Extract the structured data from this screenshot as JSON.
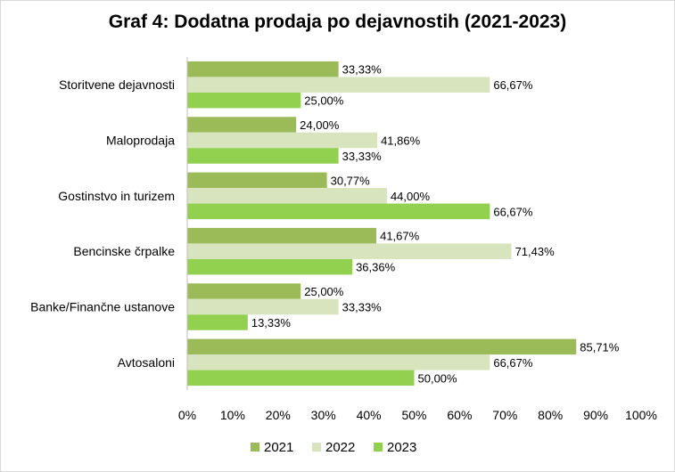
{
  "chart_data": {
    "type": "bar",
    "orientation": "horizontal",
    "title": "Graf 4: Dodatna prodaja po dejavnostih (2021-2023)",
    "categories": [
      "Storitvene dejavnosti",
      "Maloprodaja",
      "Gostinstvo in turizem",
      "Bencinske črpalke",
      "Banke/Finančne ustanove",
      "Avtosaloni"
    ],
    "series": [
      {
        "name": "2021",
        "color": "#9bbb59",
        "values": [
          33.33,
          24.0,
          30.77,
          41.67,
          25.0,
          85.71
        ],
        "labels": [
          "33,33%",
          "24,00%",
          "30,77%",
          "41,67%",
          "25,00%",
          "85,71%"
        ]
      },
      {
        "name": "2022",
        "color": "#d7e4bd",
        "values": [
          66.67,
          41.86,
          44.0,
          71.43,
          33.33,
          66.67
        ],
        "labels": [
          "66,67%",
          "41,86%",
          "44,00%",
          "71,43%",
          "33,33%",
          "66,67%"
        ]
      },
      {
        "name": "2023",
        "color": "#92d050",
        "values": [
          25.0,
          33.33,
          66.67,
          36.36,
          13.33,
          50.0
        ],
        "labels": [
          "25,00%",
          "33,33%",
          "66,67%",
          "36,36%",
          "13,33%",
          "50,00%"
        ]
      }
    ],
    "xlim": [
      0,
      100
    ],
    "x_ticks": [
      "0%",
      "10%",
      "20%",
      "30%",
      "40%",
      "50%",
      "60%",
      "70%",
      "80%",
      "90%",
      "100%"
    ],
    "grid": false,
    "legend_position": "bottom"
  }
}
